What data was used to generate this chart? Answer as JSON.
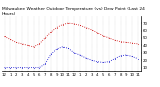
{
  "title": "Milwaukee Weather Outdoor Temperature (vs) Dew Point (Last 24 Hours)",
  "temp": [
    52,
    48,
    44,
    42,
    40,
    38,
    42,
    50,
    58,
    64,
    68,
    70,
    69,
    67,
    64,
    61,
    57,
    53,
    50,
    47,
    45,
    44,
    43,
    42
  ],
  "dew": [
    10,
    10,
    10,
    10,
    10,
    10,
    10,
    15,
    28,
    35,
    38,
    36,
    30,
    27,
    23,
    20,
    18,
    17,
    18,
    22,
    26,
    27,
    25,
    22
  ],
  "x": [
    0,
    1,
    2,
    3,
    4,
    5,
    6,
    7,
    8,
    9,
    10,
    11,
    12,
    13,
    14,
    15,
    16,
    17,
    18,
    19,
    20,
    21,
    22,
    23
  ],
  "xlabels": [
    "12",
    "1",
    "2",
    "3",
    "4",
    "5",
    "6",
    "7",
    "8",
    "9",
    "10",
    "11",
    "12",
    "1",
    "2",
    "3",
    "4",
    "5",
    "6",
    "7",
    "8",
    "9",
    "10",
    "11"
  ],
  "ylim": [
    5,
    80
  ],
  "yticks": [
    10,
    20,
    30,
    40,
    50,
    60,
    70
  ],
  "ytick_labels": [
    "10",
    "20",
    "30",
    "40",
    "50",
    "60",
    "70"
  ],
  "temp_color": "#cc0000",
  "dew_color": "#0000cc",
  "grid_color": "#aaaaaa",
  "bg_color": "#ffffff",
  "title_fontsize": 3.2,
  "tick_fontsize": 2.8,
  "linewidth": 0.6,
  "markersize": 1.0
}
